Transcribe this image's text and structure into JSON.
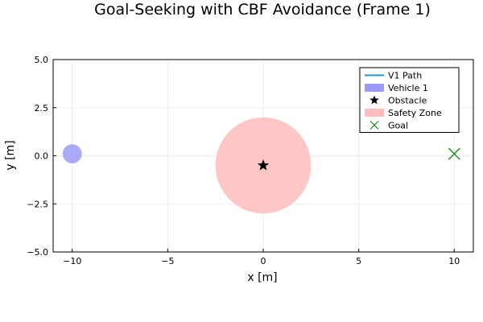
{
  "chart_data": {
    "type": "scatter",
    "title": "Goal-Seeking with CBF Avoidance (Frame 1)",
    "xlabel": "x [m]",
    "ylabel": "y [m]",
    "xlim": [
      -11,
      11
    ],
    "ylim": [
      -5,
      5
    ],
    "x_ticks": [
      -10,
      -5,
      0,
      5,
      10
    ],
    "x_tick_labels": [
      "−10",
      "−5",
      "0",
      "5",
      "10"
    ],
    "y_ticks": [
      -5,
      -2.5,
      0,
      2.5,
      5
    ],
    "y_tick_labels": [
      "−5.0",
      "−2.5",
      "0.0",
      "2.5",
      "5.0"
    ],
    "grid": true,
    "legend_position": "top-right",
    "series": [
      {
        "name": "V1 Path",
        "kind": "line",
        "color": "#1f9bcf",
        "x": [
          -10.0
        ],
        "y": [
          0.1
        ]
      },
      {
        "name": "Vehicle 1",
        "kind": "circle",
        "color": "#9b9bf7",
        "center": [
          -10.0,
          0.1
        ],
        "radius": 0.5
      },
      {
        "name": "Obstacle",
        "kind": "star",
        "color": "#000000",
        "x": [
          0.0
        ],
        "y": [
          -0.5
        ]
      },
      {
        "name": "Safety Zone",
        "kind": "circle",
        "color": "#ffbcbc",
        "center": [
          0.0,
          -0.5
        ],
        "radius": 2.5
      },
      {
        "name": "Goal",
        "kind": "x-marker",
        "color": "#1a8a1a",
        "x": [
          10.0
        ],
        "y": [
          0.1
        ]
      }
    ]
  }
}
